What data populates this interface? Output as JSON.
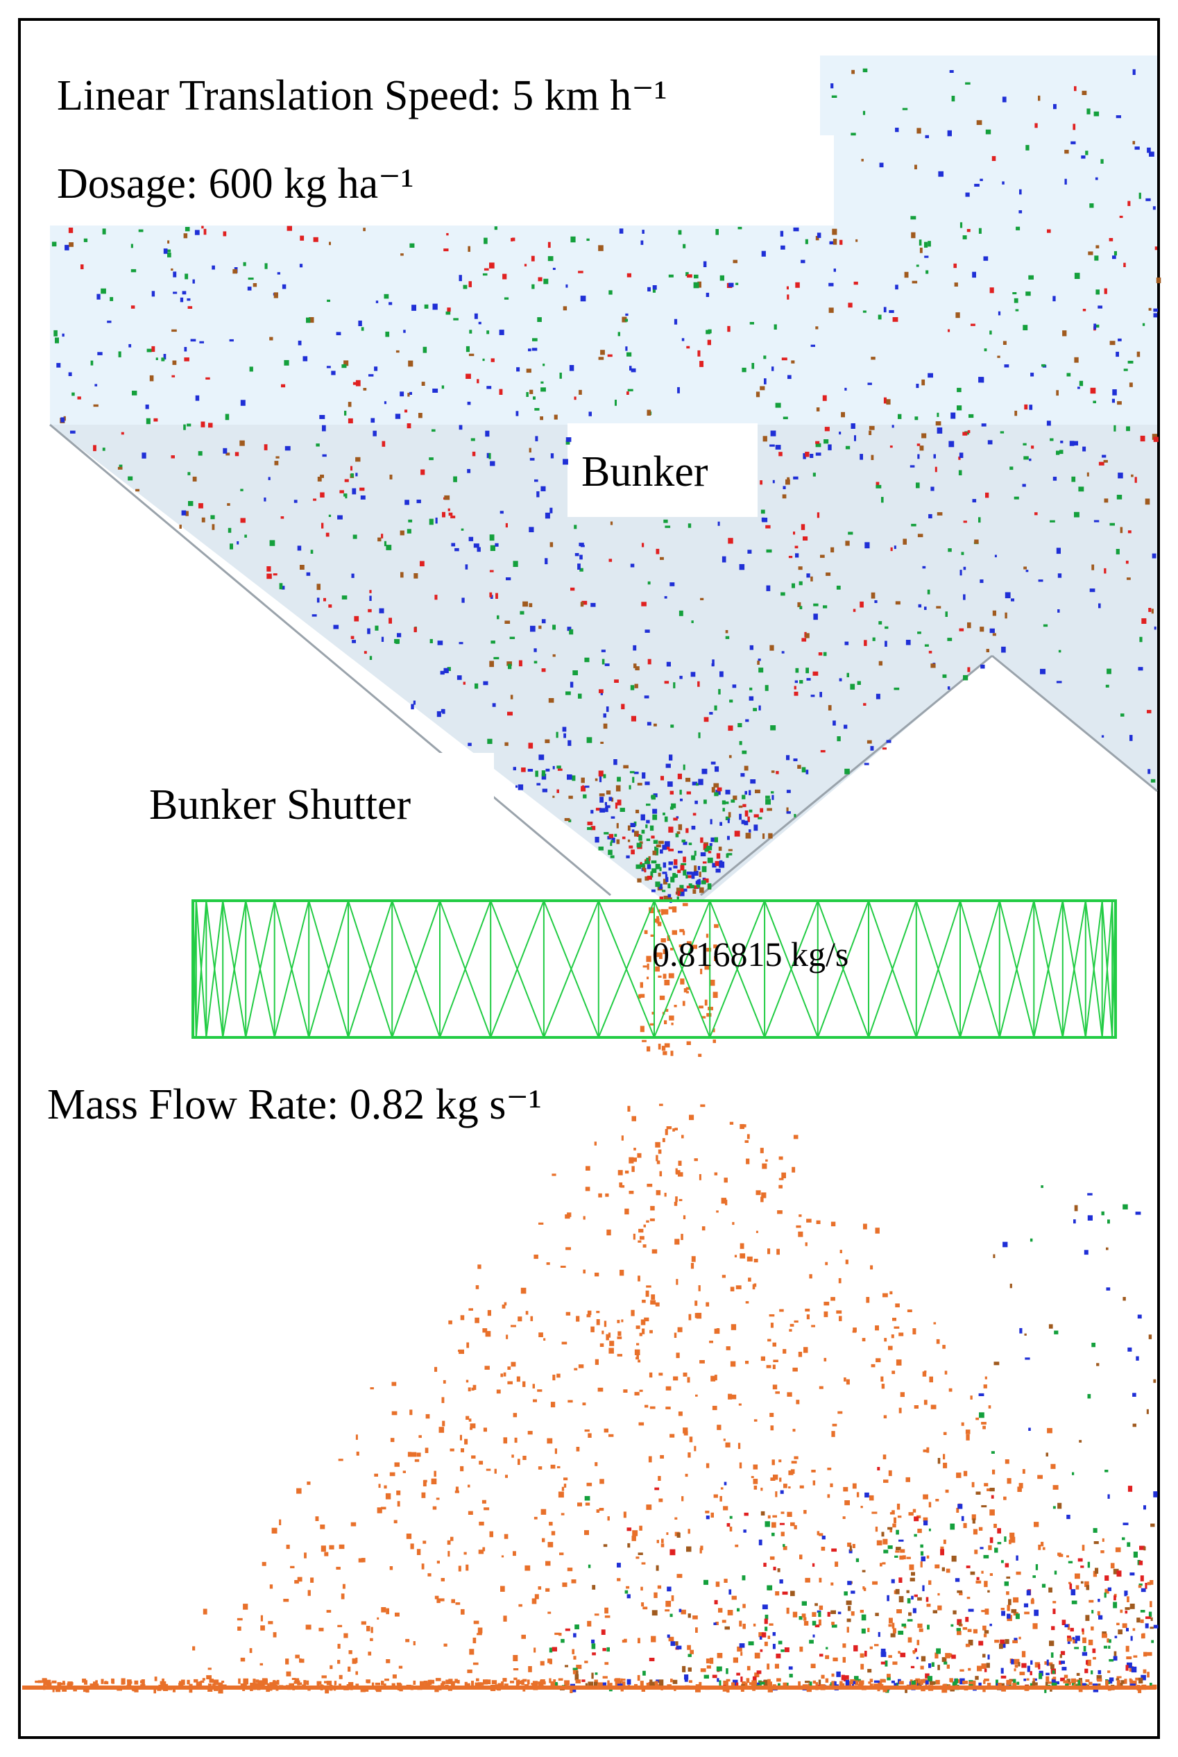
{
  "figure": {
    "labels": {
      "speed": "Linear Translation Speed: 5 km h⁻¹",
      "dosage": "Dosage: 600 kg ha⁻¹",
      "bunker": "Bunker",
      "bunker_shutter": "Bunker Shutter",
      "sensor_readout": "0.816815 kg/s",
      "mass_flow_rate": "Mass Flow Rate: 0.82 kg s⁻¹"
    },
    "colors": {
      "frame": "#000000",
      "bunker_fill": "#e6f2fa",
      "bunker_shade": "#dfe6ee",
      "sensor_box": "#22cc44",
      "particle_blue": "#1f2fd6",
      "particle_green": "#14a03c",
      "particle_brown": "#a05a1e",
      "particle_red": "#e02020",
      "particle_orange": "#e8702a"
    }
  }
}
